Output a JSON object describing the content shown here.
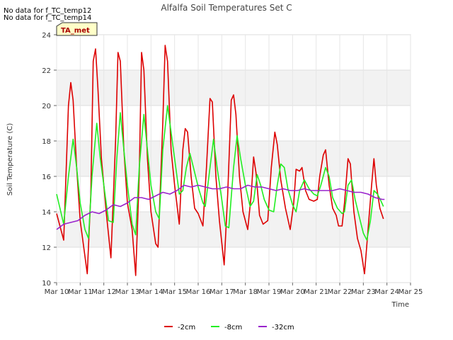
{
  "notes": [
    "No data for f_TC_temp12",
    "No data for f_TC_temp14"
  ],
  "tag": "TA_met",
  "chart_data": {
    "type": "line",
    "title": "Alfalfa Soil Temperatures Set C",
    "xlabel": "Time",
    "ylabel": "Soil Temperature (C)",
    "xlim": [
      10,
      25
    ],
    "ylim": [
      10,
      24
    ],
    "xticks": [
      10,
      11,
      12,
      13,
      14,
      15,
      16,
      17,
      18,
      19,
      20,
      21,
      22,
      23,
      24,
      25
    ],
    "xtick_labels": [
      "Mar 10",
      "Mar 11",
      "Mar 12",
      "Mar 13",
      "Mar 14",
      "Mar 15",
      "Mar 16",
      "Mar 17",
      "Mar 18",
      "Mar 19",
      "Mar 20",
      "Mar 21",
      "Mar 22",
      "Mar 23",
      "Mar 24",
      "Mar 25"
    ],
    "yticks": [
      10,
      12,
      14,
      16,
      18,
      20,
      22,
      24
    ],
    "ytick_labels": [
      "10",
      "12",
      "14",
      "16",
      "18",
      "20",
      "22",
      "24"
    ],
    "grid": true,
    "legend_position": "bottom-center",
    "series": [
      {
        "name": "-2cm",
        "color": "#dd0000",
        "points": [
          [
            10.0,
            13.9
          ],
          [
            10.3,
            12.4
          ],
          [
            10.5,
            20.0
          ],
          [
            10.6,
            21.3
          ],
          [
            10.7,
            20.3
          ],
          [
            10.85,
            16.5
          ],
          [
            11.0,
            13.5
          ],
          [
            11.3,
            10.5
          ],
          [
            11.45,
            15.0
          ],
          [
            11.55,
            22.5
          ],
          [
            11.65,
            23.2
          ],
          [
            11.75,
            21.0
          ],
          [
            11.9,
            17.0
          ],
          [
            12.1,
            14.0
          ],
          [
            12.3,
            11.4
          ],
          [
            12.5,
            18.0
          ],
          [
            12.6,
            23.0
          ],
          [
            12.7,
            22.5
          ],
          [
            12.85,
            17.5
          ],
          [
            13.0,
            14.5
          ],
          [
            13.2,
            13.0
          ],
          [
            13.35,
            10.4
          ],
          [
            13.5,
            16.0
          ],
          [
            13.6,
            23.0
          ],
          [
            13.7,
            22.0
          ],
          [
            13.85,
            17.0
          ],
          [
            14.0,
            14.0
          ],
          [
            14.2,
            12.2
          ],
          [
            14.3,
            12.0
          ],
          [
            14.5,
            19.0
          ],
          [
            14.6,
            23.4
          ],
          [
            14.7,
            22.5
          ],
          [
            14.85,
            17.5
          ],
          [
            15.0,
            15.5
          ],
          [
            15.2,
            13.3
          ],
          [
            15.35,
            17.5
          ],
          [
            15.45,
            18.7
          ],
          [
            15.55,
            18.5
          ],
          [
            15.7,
            16.0
          ],
          [
            15.85,
            14.2
          ],
          [
            16.0,
            13.9
          ],
          [
            16.2,
            13.2
          ],
          [
            16.35,
            16.5
          ],
          [
            16.5,
            20.4
          ],
          [
            16.6,
            20.2
          ],
          [
            16.75,
            16.0
          ],
          [
            16.9,
            13.5
          ],
          [
            17.1,
            11.0
          ],
          [
            17.25,
            15.0
          ],
          [
            17.4,
            20.3
          ],
          [
            17.5,
            20.6
          ],
          [
            17.6,
            19.5
          ],
          [
            17.75,
            16.0
          ],
          [
            17.9,
            14.0
          ],
          [
            18.1,
            13.0
          ],
          [
            18.25,
            15.0
          ],
          [
            18.35,
            17.1
          ],
          [
            18.45,
            16.2
          ],
          [
            18.6,
            13.8
          ],
          [
            18.75,
            13.3
          ],
          [
            18.95,
            13.5
          ],
          [
            19.1,
            16.5
          ],
          [
            19.25,
            18.5
          ],
          [
            19.35,
            17.8
          ],
          [
            19.5,
            15.8
          ],
          [
            19.7,
            14.2
          ],
          [
            19.9,
            13.0
          ],
          [
            20.05,
            14.5
          ],
          [
            20.15,
            16.4
          ],
          [
            20.3,
            16.3
          ],
          [
            20.4,
            16.5
          ],
          [
            20.55,
            15.2
          ],
          [
            20.7,
            14.7
          ],
          [
            20.9,
            14.6
          ],
          [
            21.05,
            14.7
          ],
          [
            21.15,
            16.0
          ],
          [
            21.3,
            17.2
          ],
          [
            21.4,
            17.5
          ],
          [
            21.55,
            15.5
          ],
          [
            21.7,
            14.2
          ],
          [
            21.85,
            13.8
          ],
          [
            21.95,
            13.2
          ],
          [
            22.1,
            13.2
          ],
          [
            22.2,
            14.5
          ],
          [
            22.35,
            17.0
          ],
          [
            22.45,
            16.7
          ],
          [
            22.6,
            14.0
          ],
          [
            22.75,
            12.5
          ],
          [
            22.9,
            11.8
          ],
          [
            23.05,
            10.5
          ],
          [
            23.2,
            13.0
          ],
          [
            23.35,
            15.5
          ],
          [
            23.45,
            17.0
          ],
          [
            23.55,
            15.5
          ],
          [
            23.7,
            14.2
          ],
          [
            23.85,
            13.6
          ]
        ]
      },
      {
        "name": "-8cm",
        "color": "#22ee22",
        "points": [
          [
            10.0,
            15.0
          ],
          [
            10.3,
            13.3
          ],
          [
            10.5,
            16.0
          ],
          [
            10.7,
            18.1
          ],
          [
            10.85,
            16.5
          ],
          [
            11.0,
            14.5
          ],
          [
            11.2,
            13.0
          ],
          [
            11.35,
            12.5
          ],
          [
            11.5,
            16.0
          ],
          [
            11.7,
            19.0
          ],
          [
            11.85,
            17.0
          ],
          [
            12.0,
            15.5
          ],
          [
            12.2,
            13.5
          ],
          [
            12.4,
            13.4
          ],
          [
            12.55,
            17.0
          ],
          [
            12.7,
            19.6
          ],
          [
            12.85,
            17.5
          ],
          [
            13.0,
            15.5
          ],
          [
            13.2,
            13.3
          ],
          [
            13.35,
            12.7
          ],
          [
            13.5,
            16.5
          ],
          [
            13.7,
            19.5
          ],
          [
            13.85,
            17.5
          ],
          [
            14.0,
            15.5
          ],
          [
            14.2,
            14.0
          ],
          [
            14.35,
            13.6
          ],
          [
            14.5,
            17.5
          ],
          [
            14.7,
            20.0
          ],
          [
            14.85,
            18.5
          ],
          [
            15.0,
            17.0
          ],
          [
            15.2,
            15.0
          ],
          [
            15.35,
            15.2
          ],
          [
            15.5,
            16.5
          ],
          [
            15.65,
            17.3
          ],
          [
            15.8,
            16.5
          ],
          [
            16.0,
            15.4
          ],
          [
            16.2,
            14.5
          ],
          [
            16.3,
            14.3
          ],
          [
            16.5,
            16.5
          ],
          [
            16.65,
            18.1
          ],
          [
            16.8,
            16.5
          ],
          [
            17.0,
            14.7
          ],
          [
            17.15,
            13.2
          ],
          [
            17.3,
            13.1
          ],
          [
            17.5,
            16.5
          ],
          [
            17.65,
            18.3
          ],
          [
            17.8,
            17.0
          ],
          [
            18.0,
            15.5
          ],
          [
            18.2,
            14.3
          ],
          [
            18.35,
            14.6
          ],
          [
            18.5,
            16.1
          ],
          [
            18.65,
            15.5
          ],
          [
            18.8,
            14.7
          ],
          [
            19.0,
            14.1
          ],
          [
            19.2,
            14.0
          ],
          [
            19.35,
            15.5
          ],
          [
            19.5,
            16.7
          ],
          [
            19.65,
            16.5
          ],
          [
            19.8,
            15.3
          ],
          [
            20.0,
            14.4
          ],
          [
            20.15,
            14.0
          ],
          [
            20.3,
            15.2
          ],
          [
            20.5,
            15.8
          ],
          [
            20.7,
            15.3
          ],
          [
            20.9,
            15.0
          ],
          [
            21.05,
            14.9
          ],
          [
            21.2,
            15.5
          ],
          [
            21.4,
            16.5
          ],
          [
            21.55,
            16.0
          ],
          [
            21.7,
            14.8
          ],
          [
            21.9,
            14.2
          ],
          [
            22.1,
            13.9
          ],
          [
            22.2,
            14.0
          ],
          [
            22.35,
            15.5
          ],
          [
            22.5,
            15.8
          ],
          [
            22.65,
            14.7
          ],
          [
            22.85,
            13.6
          ],
          [
            23.0,
            12.8
          ],
          [
            23.15,
            12.4
          ],
          [
            23.3,
            13.5
          ],
          [
            23.45,
            15.2
          ],
          [
            23.6,
            15.0
          ],
          [
            23.75,
            14.6
          ],
          [
            23.85,
            14.3
          ]
        ]
      },
      {
        "name": "-32cm",
        "color": "#9922cc",
        "points": [
          [
            10.0,
            13.0
          ],
          [
            10.3,
            13.3
          ],
          [
            10.6,
            13.4
          ],
          [
            10.9,
            13.5
          ],
          [
            11.2,
            13.8
          ],
          [
            11.5,
            14.0
          ],
          [
            11.8,
            13.9
          ],
          [
            12.1,
            14.1
          ],
          [
            12.4,
            14.4
          ],
          [
            12.7,
            14.3
          ],
          [
            13.0,
            14.5
          ],
          [
            13.3,
            14.8
          ],
          [
            13.6,
            14.8
          ],
          [
            13.9,
            14.7
          ],
          [
            14.2,
            14.9
          ],
          [
            14.5,
            15.1
          ],
          [
            14.8,
            15.0
          ],
          [
            15.1,
            15.2
          ],
          [
            15.4,
            15.5
          ],
          [
            15.7,
            15.4
          ],
          [
            16.0,
            15.5
          ],
          [
            16.3,
            15.4
          ],
          [
            16.6,
            15.3
          ],
          [
            16.9,
            15.3
          ],
          [
            17.2,
            15.4
          ],
          [
            17.5,
            15.3
          ],
          [
            17.8,
            15.3
          ],
          [
            18.1,
            15.5
          ],
          [
            18.4,
            15.4
          ],
          [
            18.7,
            15.4
          ],
          [
            19.0,
            15.3
          ],
          [
            19.3,
            15.2
          ],
          [
            19.6,
            15.3
          ],
          [
            19.9,
            15.2
          ],
          [
            20.2,
            15.2
          ],
          [
            20.5,
            15.3
          ],
          [
            20.8,
            15.2
          ],
          [
            21.1,
            15.2
          ],
          [
            21.4,
            15.2
          ],
          [
            21.7,
            15.2
          ],
          [
            22.0,
            15.3
          ],
          [
            22.3,
            15.2
          ],
          [
            22.6,
            15.1
          ],
          [
            22.9,
            15.1
          ],
          [
            23.2,
            15.0
          ],
          [
            23.5,
            14.8
          ],
          [
            23.8,
            14.7
          ],
          [
            23.9,
            14.7
          ]
        ]
      }
    ]
  }
}
